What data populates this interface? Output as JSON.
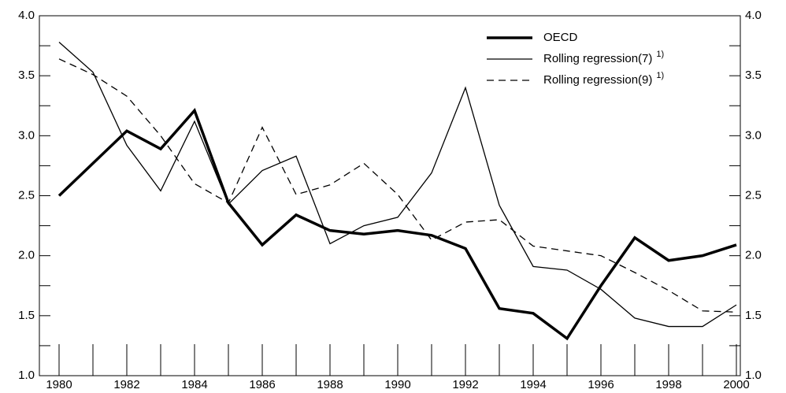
{
  "chart_data": {
    "type": "line",
    "x": [
      1980,
      1981,
      1982,
      1983,
      1984,
      1985,
      1986,
      1987,
      1988,
      1989,
      1990,
      1991,
      1992,
      1993,
      1994,
      1995,
      1996,
      1997,
      1998,
      1999,
      2000
    ],
    "series": [
      {
        "name": "OECD",
        "color": "#000000",
        "width": 3.5,
        "dash": false,
        "values": [
          2.5,
          2.77,
          3.04,
          2.89,
          3.21,
          2.44,
          2.09,
          2.34,
          2.21,
          2.18,
          2.21,
          2.17,
          2.06,
          1.56,
          1.52,
          1.31,
          1.75,
          2.15,
          1.96,
          2.0,
          2.09
        ]
      },
      {
        "name": "Rolling regression(7)",
        "note": "1)",
        "color": "#000000",
        "width": 1.3,
        "dash": false,
        "values": [
          3.78,
          3.53,
          2.92,
          2.54,
          3.12,
          2.43,
          2.71,
          2.83,
          2.1,
          2.25,
          2.32,
          2.69,
          3.4,
          2.42,
          1.91,
          1.88,
          1.72,
          1.48,
          1.41,
          1.41,
          1.59
        ]
      },
      {
        "name": "Rolling regression(9)",
        "note": "1)",
        "color": "#000000",
        "width": 1.3,
        "dash": true,
        "values": [
          3.64,
          3.51,
          3.33,
          3.0,
          2.6,
          2.44,
          3.07,
          2.51,
          2.59,
          2.77,
          2.51,
          2.13,
          2.28,
          2.3,
          2.08,
          2.04,
          2.0,
          1.86,
          1.71,
          1.54,
          1.53
        ]
      }
    ],
    "xlim": [
      1980,
      2000
    ],
    "xticks": [
      1980,
      1982,
      1984,
      1986,
      1988,
      1990,
      1992,
      1994,
      1996,
      1998,
      2000
    ],
    "xticks_minor": [
      1981,
      1983,
      1985,
      1987,
      1989,
      1991,
      1993,
      1995,
      1997,
      1999
    ],
    "ylim": [
      1.0,
      4.0
    ],
    "yticks": [
      {
        "value": 1.0,
        "label": "1.0"
      },
      {
        "value": 1.5,
        "label": "1.5"
      },
      {
        "value": 2.0,
        "label": "2.0"
      },
      {
        "value": 2.5,
        "label": "2.5"
      },
      {
        "value": 3.0,
        "label": "3.0"
      },
      {
        "value": 3.5,
        "label": "3.5"
      },
      {
        "value": 4.0,
        "label": "4.0"
      }
    ],
    "yticks_minor": [
      1.25,
      1.75,
      2.25,
      2.75,
      3.25,
      3.75
    ],
    "legend": "top-right"
  }
}
